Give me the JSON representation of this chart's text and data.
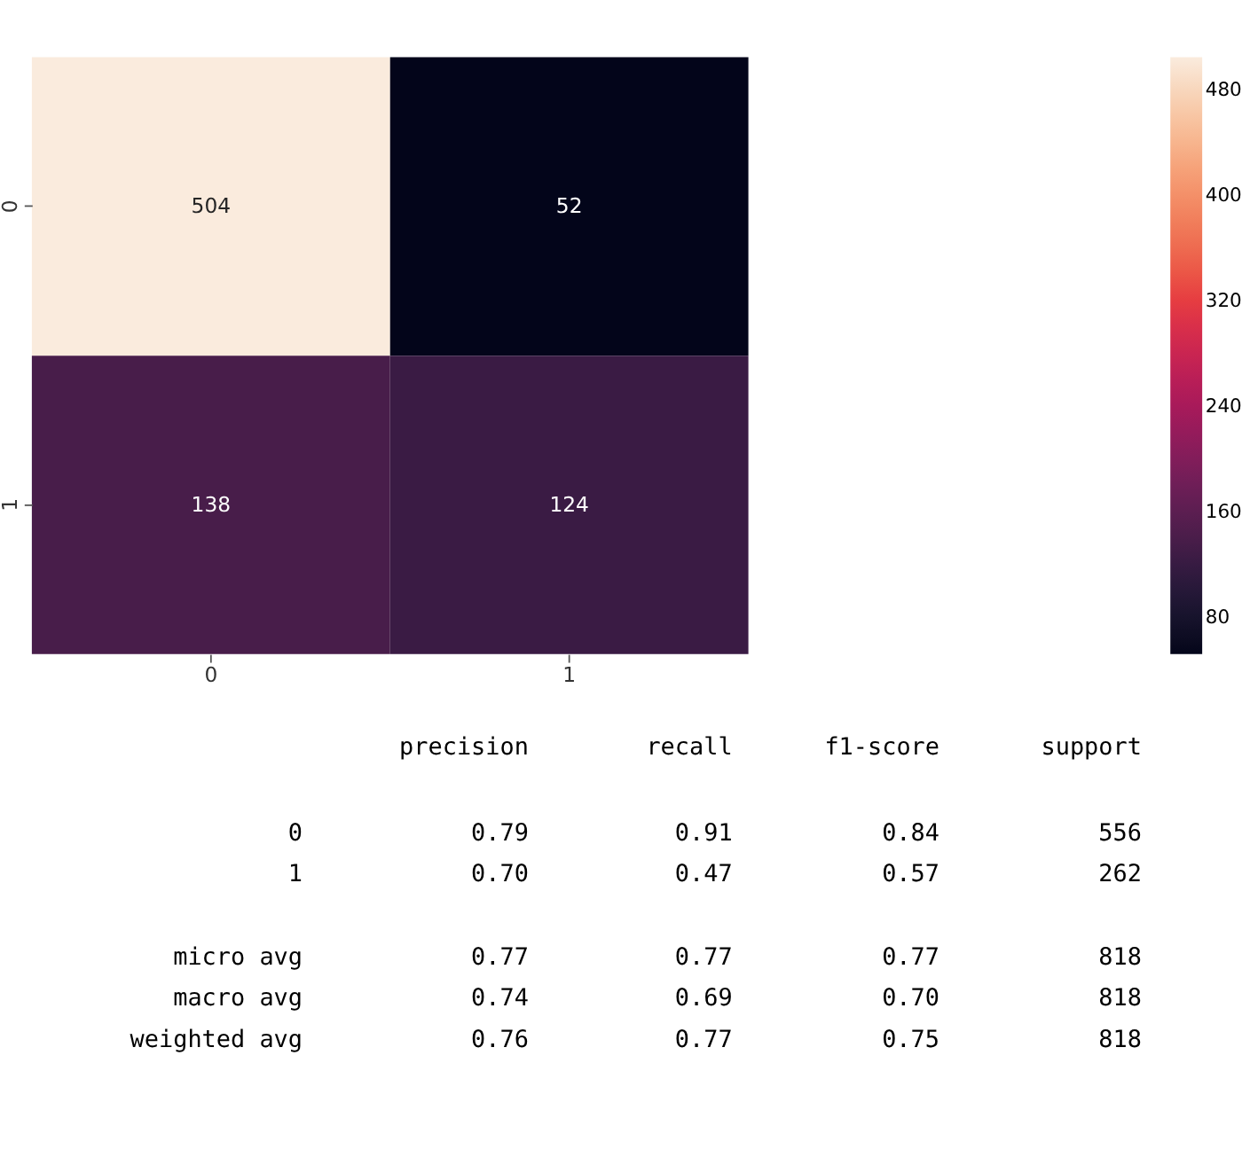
{
  "chart_data": {
    "type": "heatmap",
    "categories": [
      "0",
      "1"
    ],
    "y_categories": [
      "0",
      "1"
    ],
    "cells": [
      [
        504,
        52
      ],
      [
        138,
        124
      ]
    ],
    "data_labels": true,
    "clim": [
      52,
      504
    ],
    "cticks": [
      80,
      160,
      240,
      320,
      400,
      480
    ],
    "annotations": [
      "precision    recall  f1-score   support",
      "0       0.79      0.91      0.84       556",
      "1       0.70      0.47      0.57       262",
      "micro avg       0.77      0.77      0.77       818",
      "macro avg       0.74      0.69      0.70       818",
      "weighted avg       0.76      0.77      0.75       818"
    ]
  }
}
